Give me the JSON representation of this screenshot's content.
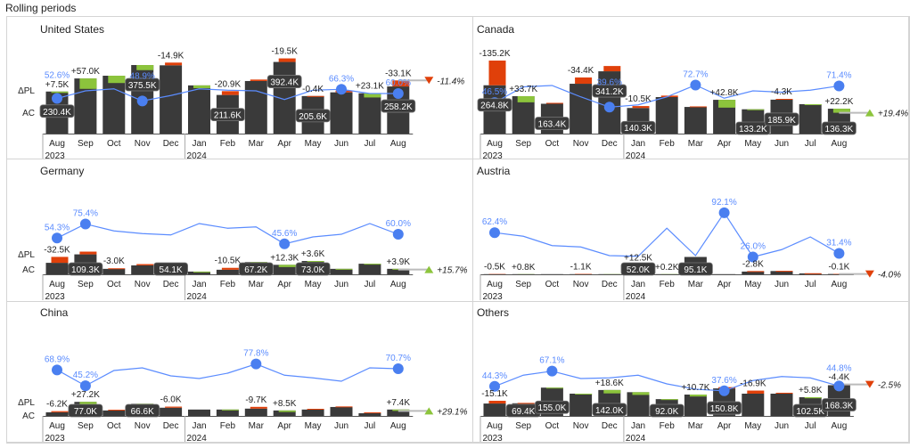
{
  "page_title": "Rolling periods",
  "colors": {
    "ac": "#3a3a3a",
    "positive": "#8cc43c",
    "negative": "#e0400a",
    "line": "#5b8cff",
    "dot": "#4a7ff0",
    "axis": "#555555"
  },
  "chart_data": [
    {
      "type": "bar",
      "title": "United States",
      "months": [
        "Aug",
        "Sep",
        "Oct",
        "Nov",
        "Dec",
        "Jan",
        "Feb",
        "Mar",
        "Apr",
        "May",
        "Jun",
        "Jul",
        "Aug"
      ],
      "years": [
        "2023",
        "2024"
      ],
      "row_labels": [
        "ΔPL",
        "AC"
      ],
      "ac": [
        230.4,
        302,
        317,
        375.5,
        374,
        264,
        211.6,
        288,
        392.4,
        205.6,
        226,
        221,
        258.2
      ],
      "ac_labels": [
        "230.4K",
        "",
        "",
        "375.5K",
        "",
        "",
        "211.6K",
        "",
        "392.4K",
        "205.6K",
        "",
        "",
        "258.2K"
      ],
      "delta": [
        7.5,
        57.0,
        40,
        28,
        -14.9,
        15,
        -20.9,
        -8,
        -19.5,
        -0.4,
        -10,
        23.1,
        -33.1
      ],
      "delta_labels": [
        "+7.5K",
        "+57.0K",
        "",
        "",
        "-14.9K",
        "",
        "-20.9K",
        "",
        "-19.5K",
        "-0.4K",
        "",
        "+23.1K",
        "-33.1K"
      ],
      "pct": [
        52.6,
        64,
        67,
        48.9,
        57,
        67,
        65,
        64,
        51,
        65,
        66.3,
        60,
        60.0
      ],
      "pct_labels": [
        "52.6%",
        "",
        "",
        "48.9%",
        "",
        "",
        "",
        "",
        "",
        "",
        "66.3%",
        "",
        "60.0%"
      ],
      "total": "-11.4%",
      "total_dir": "down"
    },
    {
      "type": "bar",
      "title": "Canada",
      "months": [
        "Aug",
        "Sep",
        "Oct",
        "Nov",
        "Dec",
        "Jan",
        "Feb",
        "Mar",
        "Apr",
        "May",
        "Jun",
        "Jul",
        "Aug"
      ],
      "years": [
        "2023",
        "2024"
      ],
      "row_labels": [
        "",
        ""
      ],
      "ac": [
        264.8,
        205,
        163.4,
        273,
        341.2,
        140.3,
        200,
        146,
        185,
        133.2,
        185.9,
        161,
        136.3
      ],
      "ac_labels": [
        "264.8K",
        "",
        "163.4K",
        "",
        "341.2K",
        "140.3K",
        "",
        "",
        "",
        "133.2K",
        "185.9K",
        "",
        "136.3K"
      ],
      "delta": [
        -135.2,
        33.7,
        -5,
        -34.4,
        -29,
        -10.5,
        -8,
        -3,
        42.8,
        3,
        -4.3,
        5,
        22.2
      ],
      "delta_labels": [
        "-135.2K",
        "+33.7K",
        "",
        "-34.4K",
        "",
        "-10.5K",
        "",
        "",
        "+42.8K",
        "",
        "-4.3K",
        "",
        "+22.2K"
      ],
      "pct": [
        46.5,
        70,
        72,
        55,
        39.6,
        43,
        55,
        72.7,
        53,
        64,
        62,
        65,
        71.4
      ],
      "pct_labels": [
        "46.5%",
        "",
        "",
        "",
        "39.6%",
        "",
        "",
        "72.7%",
        "",
        "",
        "",
        "",
        "71.4%"
      ],
      "total": "+19.4%",
      "total_dir": "up"
    },
    {
      "type": "bar",
      "title": "Germany",
      "months": [
        "Aug",
        "Sep",
        "Oct",
        "Nov",
        "Dec",
        "Jan",
        "Feb",
        "Mar",
        "Apr",
        "May",
        "Jun",
        "Jul",
        "Aug"
      ],
      "years": [
        "2023",
        "2024"
      ],
      "row_labels": [
        "ΔPL",
        "AC"
      ],
      "ac": [
        63,
        109.3,
        30,
        49,
        54.1,
        15,
        25,
        67.2,
        52,
        73.0,
        30,
        58,
        30
      ],
      "ac_labels": [
        "",
        "109.3K",
        "",
        "",
        "54.1K",
        "",
        "",
        "67.2K",
        "",
        "73.0K",
        "",
        "",
        ""
      ],
      "delta": [
        -32.5,
        -15,
        -3.0,
        -7,
        -1,
        1,
        -10.5,
        2,
        12.3,
        3.6,
        2,
        2,
        3.9
      ],
      "delta_labels": [
        "-32.5K",
        "",
        "-3.0K",
        "",
        "",
        "",
        "-10.5K",
        "",
        "+12.3K",
        "+3.6K",
        "",
        "",
        "+3.9K"
      ],
      "pct": [
        54.3,
        75.4,
        65,
        61,
        59,
        76,
        69,
        71,
        45.6,
        56,
        60,
        76,
        60.0
      ],
      "pct_labels": [
        "54.3%",
        "75.4%",
        "",
        "",
        "",
        "",
        "",
        "",
        "45.6%",
        "",
        "",
        "",
        "60.0%"
      ],
      "total": "+15.7%",
      "total_dir": "up"
    },
    {
      "type": "bar",
      "title": "Austria",
      "months": [
        "Aug",
        "Sep",
        "Oct",
        "Nov",
        "Dec",
        "Jan",
        "Feb",
        "Mar",
        "Apr",
        "May",
        "Jun",
        "Jul",
        "Aug"
      ],
      "years": [
        "2023",
        "2024"
      ],
      "row_labels": [
        "",
        ""
      ],
      "ac": [
        1,
        1,
        1,
        1,
        1,
        52.0,
        1,
        95.1,
        1,
        15,
        18,
        5,
        2
      ],
      "ac_labels": [
        "",
        "",
        "",
        "",
        "",
        "52.0K",
        "",
        "95.1K",
        "",
        "",
        "",
        "",
        ""
      ],
      "delta": [
        -0.5,
        0.8,
        0,
        -1.1,
        0.3,
        12.5,
        0.2,
        0,
        0,
        -2.8,
        -1,
        -1,
        -0.1
      ],
      "delta_labels": [
        "-0.5K",
        "+0.8K",
        "",
        "-1.1K",
        "",
        "+12.5K",
        "+0.2K",
        "",
        "",
        "-2.8K",
        "",
        "",
        "-0.1K"
      ],
      "pct": [
        62.4,
        57,
        43,
        41,
        28,
        27,
        69,
        28,
        92.1,
        26.0,
        37,
        56,
        31.4
      ],
      "pct_labels": [
        "62.4%",
        "",
        "",
        "",
        "",
        "",
        "",
        "",
        "92.1%",
        "26.0%",
        "",
        "",
        "31.4%"
      ],
      "total": "-4.0%",
      "total_dir": "down"
    },
    {
      "type": "bar",
      "title": "China",
      "months": [
        "Aug",
        "Sep",
        "Oct",
        "Nov",
        "Dec",
        "Jan",
        "Feb",
        "Mar",
        "Apr",
        "May",
        "Jun",
        "Jul",
        "Aug"
      ],
      "years": [
        "2023",
        "2024"
      ],
      "row_labels": [
        "ΔPL",
        "AC"
      ],
      "ac": [
        20,
        77.0,
        30,
        66.6,
        45,
        35,
        35,
        40,
        30,
        35,
        49,
        15,
        35
      ],
      "ac_labels": [
        "",
        "77.0K",
        "",
        "66.6K",
        "",
        "",
        "",
        "",
        "",
        "",
        "",
        "",
        ""
      ],
      "delta": [
        -6.2,
        27.2,
        -4,
        5,
        -6.0,
        0,
        1,
        -9.7,
        8.5,
        -4,
        -3,
        -5,
        7.4
      ],
      "delta_labels": [
        "-6.2K",
        "+27.2K",
        "",
        "",
        "-6.0K",
        "",
        "",
        "-9.7K",
        "+8.5K",
        "",
        "",
        "",
        "+7.4K"
      ],
      "pct": [
        68.9,
        45.2,
        68,
        72,
        60,
        56,
        64,
        77.8,
        61,
        57,
        52,
        72,
        70.7
      ],
      "pct_labels": [
        "68.9%",
        "45.2%",
        "",
        "",
        "",
        "",
        "",
        "77.8%",
        "",
        "",
        "",
        "",
        "70.7%"
      ],
      "total": "+29.1%",
      "total_dir": "up"
    },
    {
      "type": "bar",
      "title": "Others",
      "months": [
        "Aug",
        "Sep",
        "Oct",
        "Nov",
        "Dec",
        "Jan",
        "Feb",
        "Mar",
        "Apr",
        "May",
        "Jun",
        "Jul",
        "Aug"
      ],
      "years": [
        "2023",
        "2024"
      ],
      "row_labels": [
        "",
        ""
      ],
      "ac": [
        68,
        69.4,
        155.0,
        122,
        142.0,
        130,
        92.0,
        117,
        150.8,
        122,
        122,
        102.5,
        168.3
      ],
      "ac_labels": [
        "",
        "69.4K",
        "155.0K",
        "",
        "142.0K",
        "",
        "92.0K",
        "",
        "150.8K",
        "",
        "",
        "102.5K",
        "168.3K"
      ],
      "delta": [
        -15.1,
        -2,
        3,
        3,
        18.6,
        15,
        3,
        10.7,
        -7,
        -16.9,
        -5,
        5.8,
        -4.4
      ],
      "delta_labels": [
        "-15.1K",
        "",
        "",
        "",
        "+18.6K",
        "",
        "",
        "+10.7K",
        "",
        "-16.9K",
        "",
        "+5.8K",
        "-4.4K"
      ],
      "pct": [
        44.3,
        61,
        67.1,
        56,
        57,
        61,
        48,
        40,
        37.6,
        53,
        59,
        57,
        44.8
      ],
      "pct_labels": [
        "44.3%",
        "",
        "67.1%",
        "",
        "",
        "",
        "",
        "",
        "37.6%",
        "",
        "",
        "",
        "44.8%"
      ],
      "total": "-2.5%",
      "total_dir": "down"
    }
  ]
}
